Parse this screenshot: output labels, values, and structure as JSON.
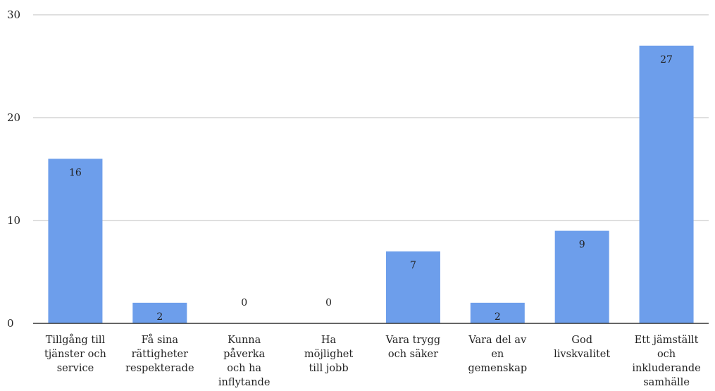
{
  "chart_data": {
    "type": "bar",
    "title": "",
    "xlabel": "",
    "ylabel": "",
    "categories": [
      "Tillgång till tjänster och service",
      "Få sina rättigheter respekterade",
      "Kunna påverka och ha inflytande",
      "Ha möjlighet till jobb",
      "Vara trygg och säker",
      "Vara del av en gemenskap",
      "God livskvalitet",
      "Ett jämställt och inkluderande samhälle"
    ],
    "category_lines": [
      [
        "Tillgång till",
        "tjänster och",
        "service"
      ],
      [
        "Få sina",
        "rättigheter",
        "respekterade"
      ],
      [
        "Kunna",
        "påverka",
        "och ha",
        "inflytande"
      ],
      [
        "Ha",
        "möjlighet",
        "till jobb"
      ],
      [
        "Vara trygg",
        "och säker"
      ],
      [
        "Vara del av",
        "en",
        "gemenskap"
      ],
      [
        "God",
        "livskvalitet"
      ],
      [
        "Ett jämställt",
        "och",
        "inkluderande",
        "samhälle"
      ]
    ],
    "values": [
      16,
      2,
      0,
      0,
      7,
      2,
      9,
      27
    ],
    "ylim": [
      0,
      30
    ],
    "yticks": [
      0,
      10,
      20,
      30
    ],
    "grid": true,
    "legend": "none",
    "bar_color": "#6d9eeb",
    "grid_color": "#cccccc",
    "axis_color": "#333333"
  }
}
